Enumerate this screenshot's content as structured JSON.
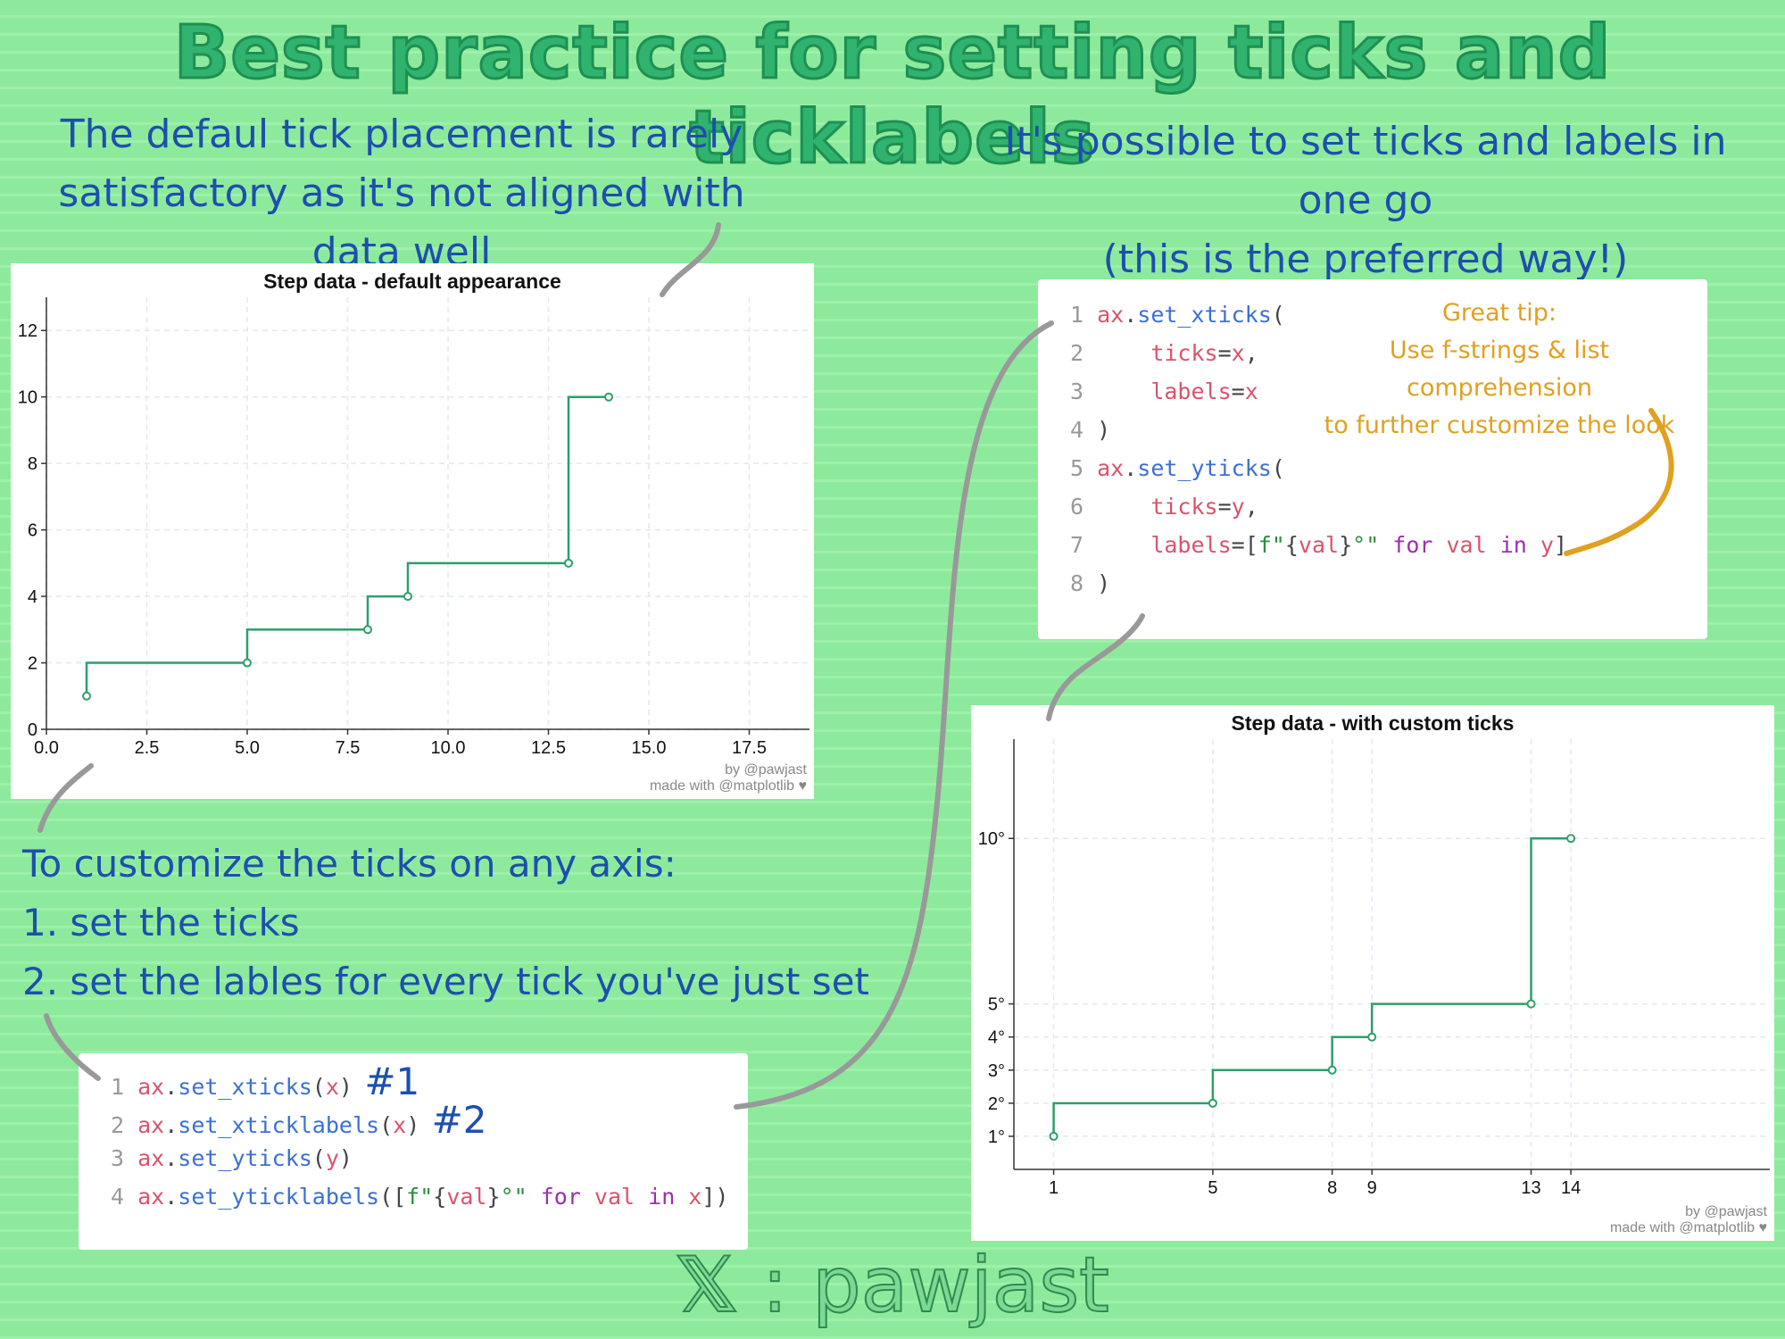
{
  "title": "Best practice for setting ticks and ticklabels",
  "notes": {
    "left_line1": "The defaul tick placement is rarely",
    "left_line2": "satisfactory as it's not aligned with data well",
    "right_line1": "It's possible to set ticks and labels in one go",
    "right_line2": "(this is the preferred way!)",
    "customize_line1": "To customize the ticks on any axis:",
    "customize_line2": "1. set the ticks",
    "customize_line3": "2. set the lables for every tick you've just set"
  },
  "tip": {
    "line1": "Great tip:",
    "line2": "Use f-strings  & list comprehension",
    "line3": "to further customize the look"
  },
  "code_right": [
    {
      "num": "1",
      "tokens": [
        [
          "ax",
          "ax"
        ],
        [
          ".",
          "p"
        ],
        [
          "set_xticks",
          "fn"
        ],
        [
          "(",
          "p"
        ]
      ]
    },
    {
      "num": "2",
      "tokens": [
        [
          "    ",
          "p"
        ],
        [
          "ticks",
          "kw"
        ],
        [
          "=",
          "p"
        ],
        [
          "x",
          "var"
        ],
        [
          ",",
          "p"
        ]
      ]
    },
    {
      "num": "3",
      "tokens": [
        [
          "    ",
          "p"
        ],
        [
          "labels",
          "kw"
        ],
        [
          "=",
          "p"
        ],
        [
          "x",
          "var"
        ]
      ]
    },
    {
      "num": "4",
      "tokens": [
        [
          ")",
          "p"
        ]
      ]
    },
    {
      "num": "5",
      "tokens": [
        [
          "ax",
          "ax"
        ],
        [
          ".",
          "p"
        ],
        [
          "set_yticks",
          "fn"
        ],
        [
          "(",
          "p"
        ]
      ]
    },
    {
      "num": "6",
      "tokens": [
        [
          "    ",
          "p"
        ],
        [
          "ticks",
          "kw"
        ],
        [
          "=",
          "p"
        ],
        [
          "y",
          "var"
        ],
        [
          ",",
          "p"
        ]
      ]
    },
    {
      "num": "7",
      "tokens": [
        [
          "    ",
          "p"
        ],
        [
          "labels",
          "kw"
        ],
        [
          "=[",
          "p"
        ],
        [
          "f\"",
          "str"
        ],
        [
          "{",
          "p"
        ],
        [
          "val",
          "var"
        ],
        [
          "}",
          "p"
        ],
        [
          "°\" ",
          "str"
        ],
        [
          "for",
          "for"
        ],
        [
          " val ",
          "var"
        ],
        [
          "in",
          "for"
        ],
        [
          " y",
          "var"
        ],
        [
          "]",
          "p"
        ]
      ]
    },
    {
      "num": "8",
      "tokens": [
        [
          ")",
          "p"
        ]
      ]
    }
  ],
  "code_left": [
    {
      "num": "1",
      "tokens": [
        [
          "ax",
          "ax"
        ],
        [
          ".",
          "p"
        ],
        [
          "set_xticks",
          "fn"
        ],
        [
          "(",
          "p"
        ],
        [
          "x",
          "var"
        ],
        [
          ")",
          "p"
        ]
      ],
      "mark": "#1"
    },
    {
      "num": "2",
      "tokens": [
        [
          "ax",
          "ax"
        ],
        [
          ".",
          "p"
        ],
        [
          "set_xticklabels",
          "fn"
        ],
        [
          "(",
          "p"
        ],
        [
          "x",
          "var"
        ],
        [
          ")",
          "p"
        ]
      ],
      "mark": "#2"
    },
    {
      "num": "3",
      "tokens": [
        [
          "ax",
          "ax"
        ],
        [
          ".",
          "p"
        ],
        [
          "set_yticks",
          "fn"
        ],
        [
          "(",
          "p"
        ],
        [
          "y",
          "var"
        ],
        [
          ")",
          "p"
        ]
      ]
    },
    {
      "num": "4",
      "tokens": [
        [
          "ax",
          "ax"
        ],
        [
          ".",
          "p"
        ],
        [
          "set_yticklabels",
          "fn"
        ],
        [
          "([",
          "p"
        ],
        [
          "f\"",
          "str"
        ],
        [
          "{",
          "p"
        ],
        [
          "val",
          "var"
        ],
        [
          "}",
          "p"
        ],
        [
          "°\" ",
          "str"
        ],
        [
          "for",
          "for"
        ],
        [
          " val ",
          "var"
        ],
        [
          "in",
          "for"
        ],
        [
          " x",
          "var"
        ],
        [
          "])",
          "p"
        ]
      ]
    }
  ],
  "chart_data": [
    {
      "type": "line",
      "drawstyle": "steps-pre",
      "title": "Step data - default appearance",
      "x": [
        1,
        5,
        8,
        9,
        13,
        14
      ],
      "y": [
        1,
        2,
        3,
        4,
        5,
        10
      ],
      "xlim": [
        0,
        19
      ],
      "ylim": [
        0,
        13
      ],
      "xticks": [
        0.0,
        2.5,
        5.0,
        7.5,
        10.0,
        12.5,
        15.0,
        17.5
      ],
      "xticklabels": [
        "0.0",
        "2.5",
        "5.0",
        "7.5",
        "10.0",
        "12.5",
        "15.0",
        "17.5"
      ],
      "yticks": [
        0,
        2,
        4,
        6,
        8,
        10,
        12
      ],
      "yticklabels": [
        "0",
        "2",
        "4",
        "6",
        "8",
        "10",
        "12"
      ],
      "grid": true,
      "credit": [
        "by @pawjast",
        "made with @matplotlib ♥"
      ],
      "color": "#2e9e6b"
    },
    {
      "type": "line",
      "drawstyle": "steps-pre",
      "title": "Step data - with custom ticks",
      "x": [
        1,
        5,
        8,
        9,
        13,
        14
      ],
      "y": [
        1,
        2,
        3,
        4,
        5,
        10
      ],
      "xlim": [
        0,
        19
      ],
      "ylim": [
        0,
        13
      ],
      "xticks": [
        1,
        5,
        8,
        9,
        13,
        14
      ],
      "xticklabels": [
        "1",
        "5",
        "8",
        "9",
        "13",
        "14"
      ],
      "yticks": [
        1,
        2,
        3,
        4,
        5,
        10
      ],
      "yticklabels": [
        "1°",
        "2°",
        "3°",
        "4°",
        "5°",
        "10°"
      ],
      "grid": true,
      "credit": [
        "by @pawjast",
        "made with @matplotlib ♥"
      ],
      "color": "#2e9e6b"
    }
  ],
  "footer": {
    "icon": "x-logo-icon",
    "handle": ": pawjast"
  },
  "colors": {
    "line": "#2e9e6b",
    "title": "#2fb36e",
    "hand": "#1d4fae",
    "tip": "#e0a020",
    "connector": "#999999"
  }
}
